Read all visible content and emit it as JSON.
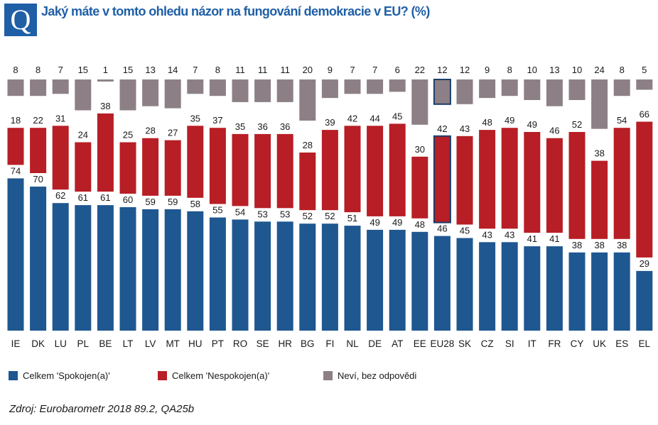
{
  "header": {
    "logo_letter": "Q",
    "title": "Jaký máte v tomto ohledu názor na fungování demokracie v EU? (%)"
  },
  "colors": {
    "satisfied": "#1f5790",
    "dissatisfied": "#b81e25",
    "dontknow": "#8c8086",
    "highlight_outline": "#1a3e6a",
    "title": "#1f5fa6"
  },
  "chart_data": {
    "type": "bar",
    "stacked": "diverging",
    "title": "Jaký máte v tomto ohledu názor na fungování demokracie v EU? (%)",
    "categories": [
      "IE",
      "DK",
      "LU",
      "PL",
      "BE",
      "LT",
      "LV",
      "MT",
      "HU",
      "PT",
      "RO",
      "SE",
      "HR",
      "BG",
      "FI",
      "NL",
      "DE",
      "AT",
      "EE",
      "EU28",
      "SK",
      "CZ",
      "SI",
      "IT",
      "FR",
      "CY",
      "UK",
      "ES",
      "EL"
    ],
    "highlight": "EU28",
    "series": [
      {
        "name": "Celkem 'Spokojen(a)'",
        "key": "satisfied",
        "values": [
          74,
          70,
          62,
          61,
          61,
          60,
          59,
          59,
          58,
          55,
          54,
          53,
          53,
          52,
          52,
          51,
          49,
          49,
          48,
          46,
          45,
          43,
          43,
          41,
          41,
          38,
          38,
          38,
          29
        ]
      },
      {
        "name": "Celkem 'Nespokojen(a)'",
        "key": "dissatisfied",
        "values": [
          18,
          22,
          31,
          24,
          38,
          25,
          28,
          27,
          35,
          37,
          35,
          36,
          36,
          28,
          39,
          42,
          44,
          45,
          30,
          42,
          43,
          48,
          49,
          49,
          46,
          52,
          38,
          54,
          66
        ]
      },
      {
        "name": "Neví, bez odpovědi",
        "key": "dontknow",
        "values": [
          8,
          8,
          7,
          15,
          1,
          15,
          13,
          14,
          7,
          8,
          11,
          11,
          11,
          20,
          9,
          7,
          7,
          6,
          22,
          12,
          12,
          9,
          8,
          10,
          13,
          10,
          24,
          8,
          5
        ]
      }
    ],
    "xlabel": "",
    "ylabel": "",
    "grid": false,
    "legend": "bottom"
  },
  "legend": {
    "satisfied_label": "Celkem 'Spokojen(a)'",
    "dissatisfied_label": "Celkem 'Nespokojen(a)'",
    "dontknow_label": "Neví, bez odpovědi"
  },
  "source": "Zdroj: Eurobarometr  2018 89.2, QA25b"
}
